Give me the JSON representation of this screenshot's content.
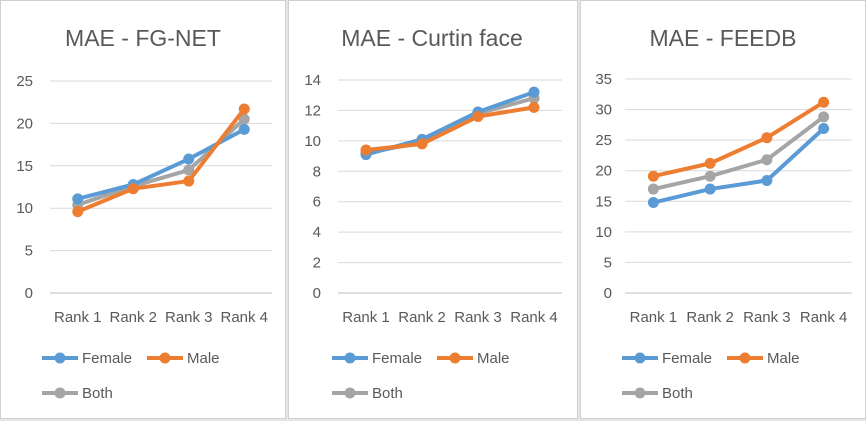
{
  "series_colors": {
    "Female": "#5b9bd5",
    "Male": "#ed7d31",
    "Both": "#a5a5a5"
  },
  "chart_data": [
    {
      "type": "line",
      "title": "MAE - FG-NET",
      "categories": [
        "Rank 1",
        "Rank 2",
        "Rank 3",
        "Rank 4"
      ],
      "ylim": [
        0,
        25
      ],
      "yticks": [
        0,
        5,
        10,
        15,
        20,
        25
      ],
      "grid": true,
      "legend": "bottom",
      "series": [
        {
          "name": "Female",
          "values": [
            11.1,
            12.8,
            15.8,
            19.3
          ]
        },
        {
          "name": "Male",
          "values": [
            9.6,
            12.3,
            13.2,
            21.7
          ]
        },
        {
          "name": "Both",
          "values": [
            10.4,
            12.6,
            14.5,
            20.5
          ]
        }
      ]
    },
    {
      "type": "line",
      "title": "MAE - Curtin face",
      "categories": [
        "Rank 1",
        "Rank 2",
        "Rank 3",
        "Rank 4"
      ],
      "ylim": [
        0,
        14
      ],
      "yticks": [
        0,
        2,
        4,
        6,
        8,
        10,
        12,
        14
      ],
      "grid": true,
      "legend": "bottom",
      "series": [
        {
          "name": "Female",
          "values": [
            9.1,
            10.1,
            11.9,
            13.2
          ]
        },
        {
          "name": "Male",
          "values": [
            9.4,
            9.8,
            11.6,
            12.2
          ]
        },
        {
          "name": "Both",
          "values": [
            9.2,
            9.9,
            11.8,
            12.8
          ]
        }
      ]
    },
    {
      "type": "line",
      "title": "MAE - FEEDB",
      "categories": [
        "Rank 1",
        "Rank 2",
        "Rank 3",
        "Rank 4"
      ],
      "ylim": [
        0,
        35
      ],
      "yticks": [
        0,
        5,
        10,
        15,
        20,
        25,
        30,
        35
      ],
      "grid": true,
      "legend": "bottom",
      "series": [
        {
          "name": "Female",
          "values": [
            14.8,
            17.0,
            18.4,
            26.9
          ]
        },
        {
          "name": "Male",
          "values": [
            19.1,
            21.2,
            25.4,
            31.2
          ]
        },
        {
          "name": "Both",
          "values": [
            17.0,
            19.1,
            21.8,
            28.8
          ]
        }
      ]
    }
  ]
}
